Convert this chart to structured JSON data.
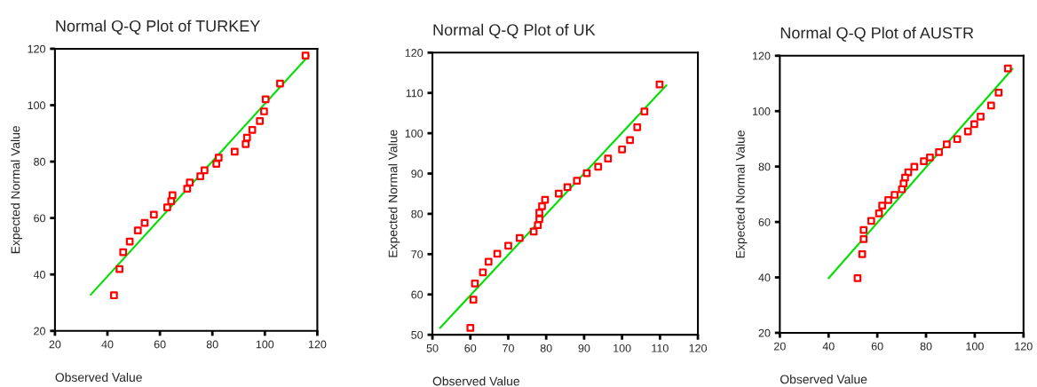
{
  "chart_data": [
    {
      "type": "scatter",
      "title": "Normal Q-Q Plot of TURKEY",
      "xlabel": "Observed Value",
      "ylabel": "Expected Normal Value",
      "xlim": [
        20,
        120
      ],
      "ylim": [
        20,
        120
      ],
      "xticks": [
        20,
        40,
        60,
        80,
        100,
        120
      ],
      "yticks": [
        20,
        40,
        60,
        80,
        100,
        120
      ],
      "grid": false,
      "legend": false,
      "series": [
        {
          "color": "#ff0000",
          "marker": "square",
          "x": [
            115.5,
            105.8,
            100.3,
            99.7,
            98.1,
            95.2,
            93.2,
            92.7,
            88.5,
            82.4,
            81.5,
            77.0,
            75.4,
            71.4,
            70.4,
            64.8,
            64.3,
            62.8,
            57.7,
            54.2,
            51.6,
            48.5,
            46.0,
            44.6,
            42.5
          ],
          "values": [
            117.6,
            107.7,
            102.1,
            97.8,
            94.4,
            91.2,
            88.5,
            86.2,
            83.5,
            81.4,
            79.2,
            76.9,
            74.8,
            72.6,
            70.4,
            68.1,
            66.0,
            63.8,
            61.2,
            58.3,
            55.6,
            51.7,
            47.9,
            41.9,
            32.6
          ]
        },
        {
          "type": "line",
          "color": "#00e000",
          "x": [
            33.6,
            116.8
          ],
          "values": [
            32.8,
            117.6
          ]
        }
      ]
    },
    {
      "type": "scatter",
      "title": "Normal Q-Q Plot of UK",
      "xlabel": "Observed Value",
      "ylabel": "Expected Normal Value",
      "xlim": [
        50,
        120
      ],
      "ylim": [
        50,
        120
      ],
      "xticks": [
        50,
        60,
        70,
        80,
        90,
        100,
        110,
        120
      ],
      "yticks": [
        50,
        60,
        70,
        80,
        90,
        100,
        110,
        120
      ],
      "grid": false,
      "legend": false,
      "series": [
        {
          "color": "#ff0000",
          "marker": "square",
          "x": [
            109.9,
            105.9,
            104.0,
            102.1,
            100.0,
            96.3,
            93.7,
            90.7,
            88.1,
            85.6,
            83.3,
            79.7,
            78.9,
            78.2,
            78.2,
            77.8,
            76.7,
            73.0,
            70.0,
            67.1,
            64.8,
            63.3,
            61.2,
            60.8,
            60.0
          ],
          "values": [
            112.1,
            105.4,
            101.5,
            98.3,
            96.0,
            93.7,
            91.7,
            90.1,
            88.2,
            86.6,
            85.0,
            83.5,
            81.9,
            80.3,
            78.7,
            77.2,
            75.6,
            74.0,
            72.1,
            70.1,
            68.1,
            65.5,
            62.7,
            58.7,
            51.7
          ]
        },
        {
          "type": "line",
          "color": "#00e000",
          "x": [
            52.0,
            111.7
          ],
          "values": [
            51.7,
            111.9
          ]
        }
      ]
    },
    {
      "type": "scatter",
      "title": "Normal Q-Q Plot of AUSTR",
      "xlabel": "Observed Value",
      "ylabel": "Expected Normal Value",
      "xlim": [
        20,
        120
      ],
      "ylim": [
        20,
        120
      ],
      "xticks": [
        20,
        40,
        60,
        80,
        100,
        120
      ],
      "yticks": [
        20,
        40,
        60,
        80,
        100,
        120
      ],
      "grid": false,
      "legend": false,
      "series": [
        {
          "color": "#ff0000",
          "marker": "square",
          "x": [
            113.6,
            109.8,
            106.7,
            102.4,
            99.8,
            97.2,
            92.8,
            88.5,
            85.3,
            81.6,
            79.1,
            75.2,
            72.7,
            71.4,
            70.8,
            70.1,
            67.1,
            64.5,
            62.0,
            60.7,
            57.5,
            54.4,
            54.4,
            53.8,
            51.9
          ],
          "values": [
            115.4,
            106.7,
            102.0,
            98.0,
            95.3,
            92.7,
            89.9,
            88.0,
            85.2,
            83.3,
            81.9,
            79.9,
            77.9,
            76.0,
            73.9,
            71.8,
            69.8,
            67.9,
            65.9,
            63.1,
            60.4,
            57.1,
            53.8,
            48.4,
            39.7
          ]
        },
        {
          "type": "line",
          "color": "#00e000",
          "x": [
            40.0,
            115.5
          ],
          "values": [
            39.7,
            115.3
          ]
        }
      ]
    }
  ]
}
